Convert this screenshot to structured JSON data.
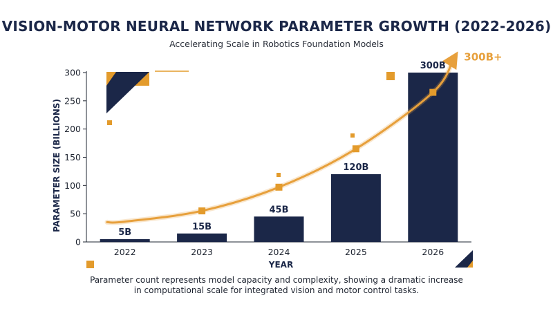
{
  "title": "VISION-MOTOR NEURAL NETWORK PARAMETER GROWTH (2022-2026)",
  "subtitle": "Accelerating Scale in Robotics Foundation Models",
  "footnote_line1": "Parameter count represents model capacity and complexity, showing a dramatic increase",
  "footnote_line2": "in computational scale for integrated vision and motor control tasks.",
  "colors": {
    "bar": "#1b2748",
    "trend": "#e7a03c",
    "marker": "#e39b2c",
    "text": "#1e2430"
  },
  "chart_data": {
    "type": "bar",
    "xlabel": "YEAR",
    "ylabel": "PARAMETER SIZE (BILLIONS)",
    "ylim": [
      0,
      300
    ],
    "yticks": [
      0,
      50,
      100,
      150,
      200,
      250,
      300
    ],
    "categories": [
      "2022",
      "2023",
      "2024",
      "2025",
      "2026"
    ],
    "values": [
      5,
      15,
      45,
      120,
      300
    ],
    "data_labels": [
      "5B",
      "15B",
      "45B",
      "120B",
      "300B"
    ],
    "trend": {
      "type": "line",
      "label": "300B+",
      "points": [
        {
          "x": "2022",
          "y": 36
        },
        {
          "x": "2023",
          "y": 55
        },
        {
          "x": "2024",
          "y": 97
        },
        {
          "x": "2025",
          "y": 165
        },
        {
          "x": "2026",
          "y": 265
        }
      ],
      "end_y": 325
    },
    "grid": false
  }
}
